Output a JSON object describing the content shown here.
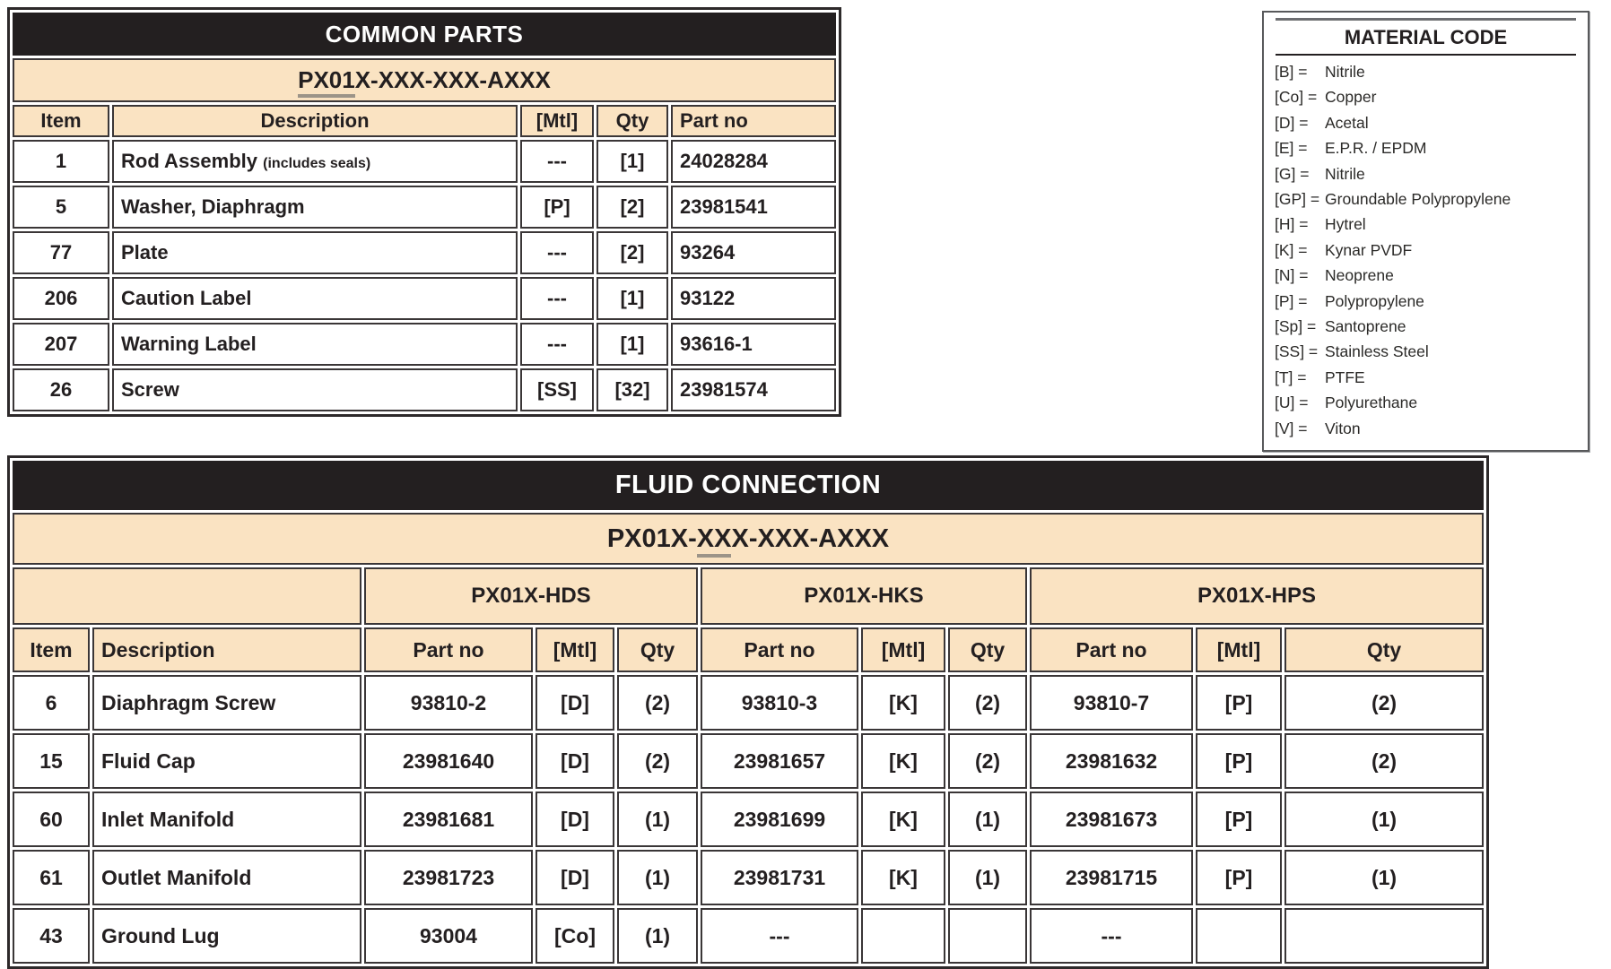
{
  "colors": {
    "header_bar": "#231f20",
    "band_tan": "#fae3c2",
    "underline_gray": "#9c9488"
  },
  "common_parts": {
    "title": "COMMON PARTS",
    "model": {
      "underlined": "PX01",
      "rest": "X-XXX-XXX-AXXX"
    },
    "columns": {
      "item": "Item",
      "description": "Description",
      "mtl": "[Mtl]",
      "qty": "Qty",
      "part": "Part no"
    },
    "rows": [
      {
        "item": "1",
        "description": "Rod Assembly",
        "note": "(includes seals)",
        "mtl": "---",
        "qty": "[1]",
        "part": "24028284"
      },
      {
        "item": "5",
        "description": "Washer, Diaphragm",
        "note": "",
        "mtl": "[P]",
        "qty": "[2]",
        "part": "23981541"
      },
      {
        "item": "77",
        "description": "Plate",
        "note": "",
        "mtl": "---",
        "qty": "[2]",
        "part": "93264"
      },
      {
        "item": "206",
        "description": "Caution Label",
        "note": "",
        "mtl": "---",
        "qty": "[1]",
        "part": "93122"
      },
      {
        "item": "207",
        "description": "Warning Label",
        "note": "",
        "mtl": "---",
        "qty": "[1]",
        "part": "93616-1"
      },
      {
        "item": "26",
        "description": "Screw",
        "note": "",
        "mtl": "[SS]",
        "qty": "[32]",
        "part": "23981574"
      }
    ]
  },
  "material_code": {
    "title": "MATERIAL CODE",
    "entries": [
      {
        "code": "[B] =",
        "name": "Nitrile"
      },
      {
        "code": "[Co] =",
        "name": "Copper"
      },
      {
        "code": "[D] =",
        "name": "Acetal"
      },
      {
        "code": "[E] =",
        "name": "E.P.R. / EPDM"
      },
      {
        "code": "[G] =",
        "name": "Nitrile"
      },
      {
        "code": "[GP] =",
        "name": "Groundable Polypropylene"
      },
      {
        "code": "[H] =",
        "name": "Hytrel"
      },
      {
        "code": "[K] =",
        "name": "Kynar PVDF"
      },
      {
        "code": "[N] =",
        "name": "Neoprene"
      },
      {
        "code": "[P] =",
        "name": "Polypropylene"
      },
      {
        "code": "[Sp] =",
        "name": "Santoprene"
      },
      {
        "code": "[SS] =",
        "name": "Stainless Steel"
      },
      {
        "code": "[T] =",
        "name": "PTFE"
      },
      {
        "code": "[U] =",
        "name": "Polyurethane"
      },
      {
        "code": "[V] =",
        "name": "Viton"
      }
    ]
  },
  "fluid_connection": {
    "title": "FLUID CONNECTION",
    "model": {
      "pre": "PX01X-",
      "underlined": "XX",
      "post": "X-XXX-AXXX"
    },
    "variants": {
      "hds": "PX01X-HDS",
      "hks": "PX01X-HKS",
      "hps": "PX01X-HPS"
    },
    "columns": {
      "item": "Item",
      "description": "Description",
      "part": "Part no",
      "mtl": "[Mtl]",
      "qty": "Qty"
    },
    "rows": [
      {
        "item": "6",
        "description": "Diaphragm Screw",
        "hds": {
          "part": "93810-2",
          "mtl": "[D]",
          "qty": "(2)"
        },
        "hks": {
          "part": "93810-3",
          "mtl": "[K]",
          "qty": "(2)"
        },
        "hps": {
          "part": "93810-7",
          "mtl": "[P]",
          "qty": "(2)"
        }
      },
      {
        "item": "15",
        "description": "Fluid Cap",
        "hds": {
          "part": "23981640",
          "mtl": "[D]",
          "qty": "(2)"
        },
        "hks": {
          "part": "23981657",
          "mtl": "[K]",
          "qty": "(2)"
        },
        "hps": {
          "part": "23981632",
          "mtl": "[P]",
          "qty": "(2)"
        }
      },
      {
        "item": "60",
        "description": "Inlet Manifold",
        "hds": {
          "part": "23981681",
          "mtl": "[D]",
          "qty": "(1)"
        },
        "hks": {
          "part": "23981699",
          "mtl": "[K]",
          "qty": "(1)"
        },
        "hps": {
          "part": "23981673",
          "mtl": "[P]",
          "qty": "(1)"
        }
      },
      {
        "item": "61",
        "description": "Outlet Manifold",
        "hds": {
          "part": "23981723",
          "mtl": "[D]",
          "qty": "(1)"
        },
        "hks": {
          "part": "23981731",
          "mtl": "[K]",
          "qty": "(1)"
        },
        "hps": {
          "part": "23981715",
          "mtl": "[P]",
          "qty": "(1)"
        }
      },
      {
        "item": "43",
        "description": "Ground Lug",
        "hds": {
          "part": "93004",
          "mtl": "[Co]",
          "qty": "(1)"
        },
        "hks": {
          "part": "---",
          "mtl": "",
          "qty": ""
        },
        "hps": {
          "part": "---",
          "mtl": "",
          "qty": ""
        }
      }
    ]
  }
}
